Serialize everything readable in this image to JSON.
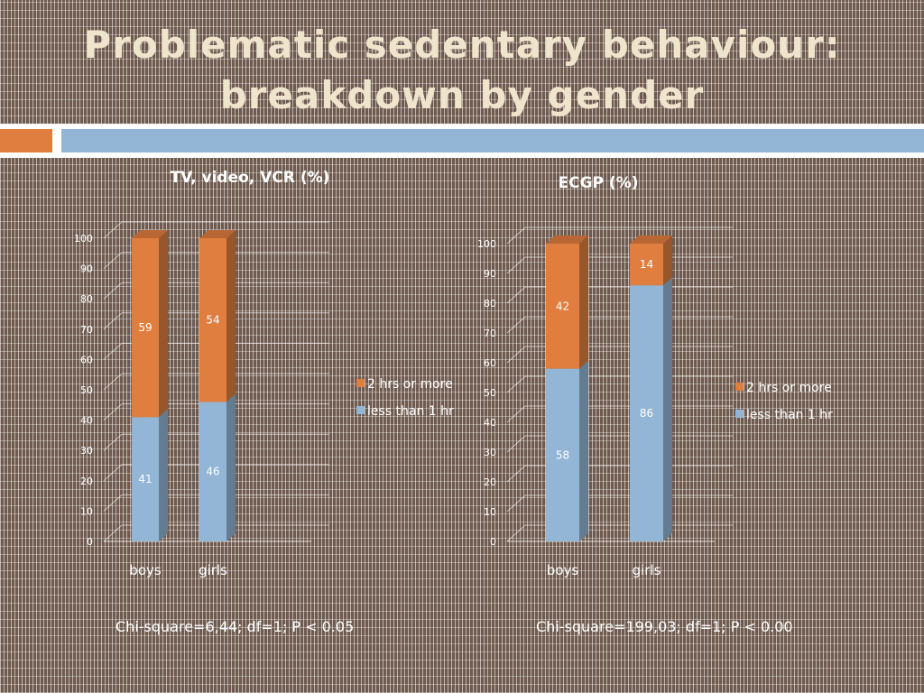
{
  "slide": {
    "title_line1": "Problematic sedentary behaviour:",
    "title_line2": "breakdown by gender"
  },
  "colors": {
    "orange": "#e07e3f",
    "blue": "#93b6d6",
    "title": "#efe4cc"
  },
  "chart_data": [
    {
      "type": "bar",
      "stacked": true,
      "three_d": true,
      "title": "TV, video, VCR (%)",
      "categories": [
        "boys",
        "girls"
      ],
      "series": [
        {
          "name": "less than 1 hr",
          "values": [
            41,
            46
          ],
          "color": "#93b6d6"
        },
        {
          "name": "2 hrs or more",
          "values": [
            59,
            54
          ],
          "color": "#e07e3f"
        }
      ],
      "ylim": [
        0,
        100
      ],
      "yticks": [
        0,
        10,
        20,
        30,
        40,
        50,
        60,
        70,
        80,
        90,
        100
      ],
      "grid": true,
      "legend": "right",
      "footnote": "Chi-square=6,44; df=1; P < 0.05"
    },
    {
      "type": "bar",
      "stacked": true,
      "three_d": true,
      "title": "ECGP (%)",
      "categories": [
        "boys",
        "girls"
      ],
      "series": [
        {
          "name": "less than 1 hr",
          "values": [
            58,
            86
          ],
          "color": "#93b6d6"
        },
        {
          "name": "2 hrs or more",
          "values": [
            42,
            14
          ],
          "color": "#e07e3f"
        }
      ],
      "ylim": [
        0,
        100
      ],
      "yticks": [
        0,
        10,
        20,
        30,
        40,
        50,
        60,
        70,
        80,
        90,
        100
      ],
      "grid": true,
      "legend": "right",
      "footnote": "Chi-square=199,03; df=1; P < 0.00"
    }
  ]
}
